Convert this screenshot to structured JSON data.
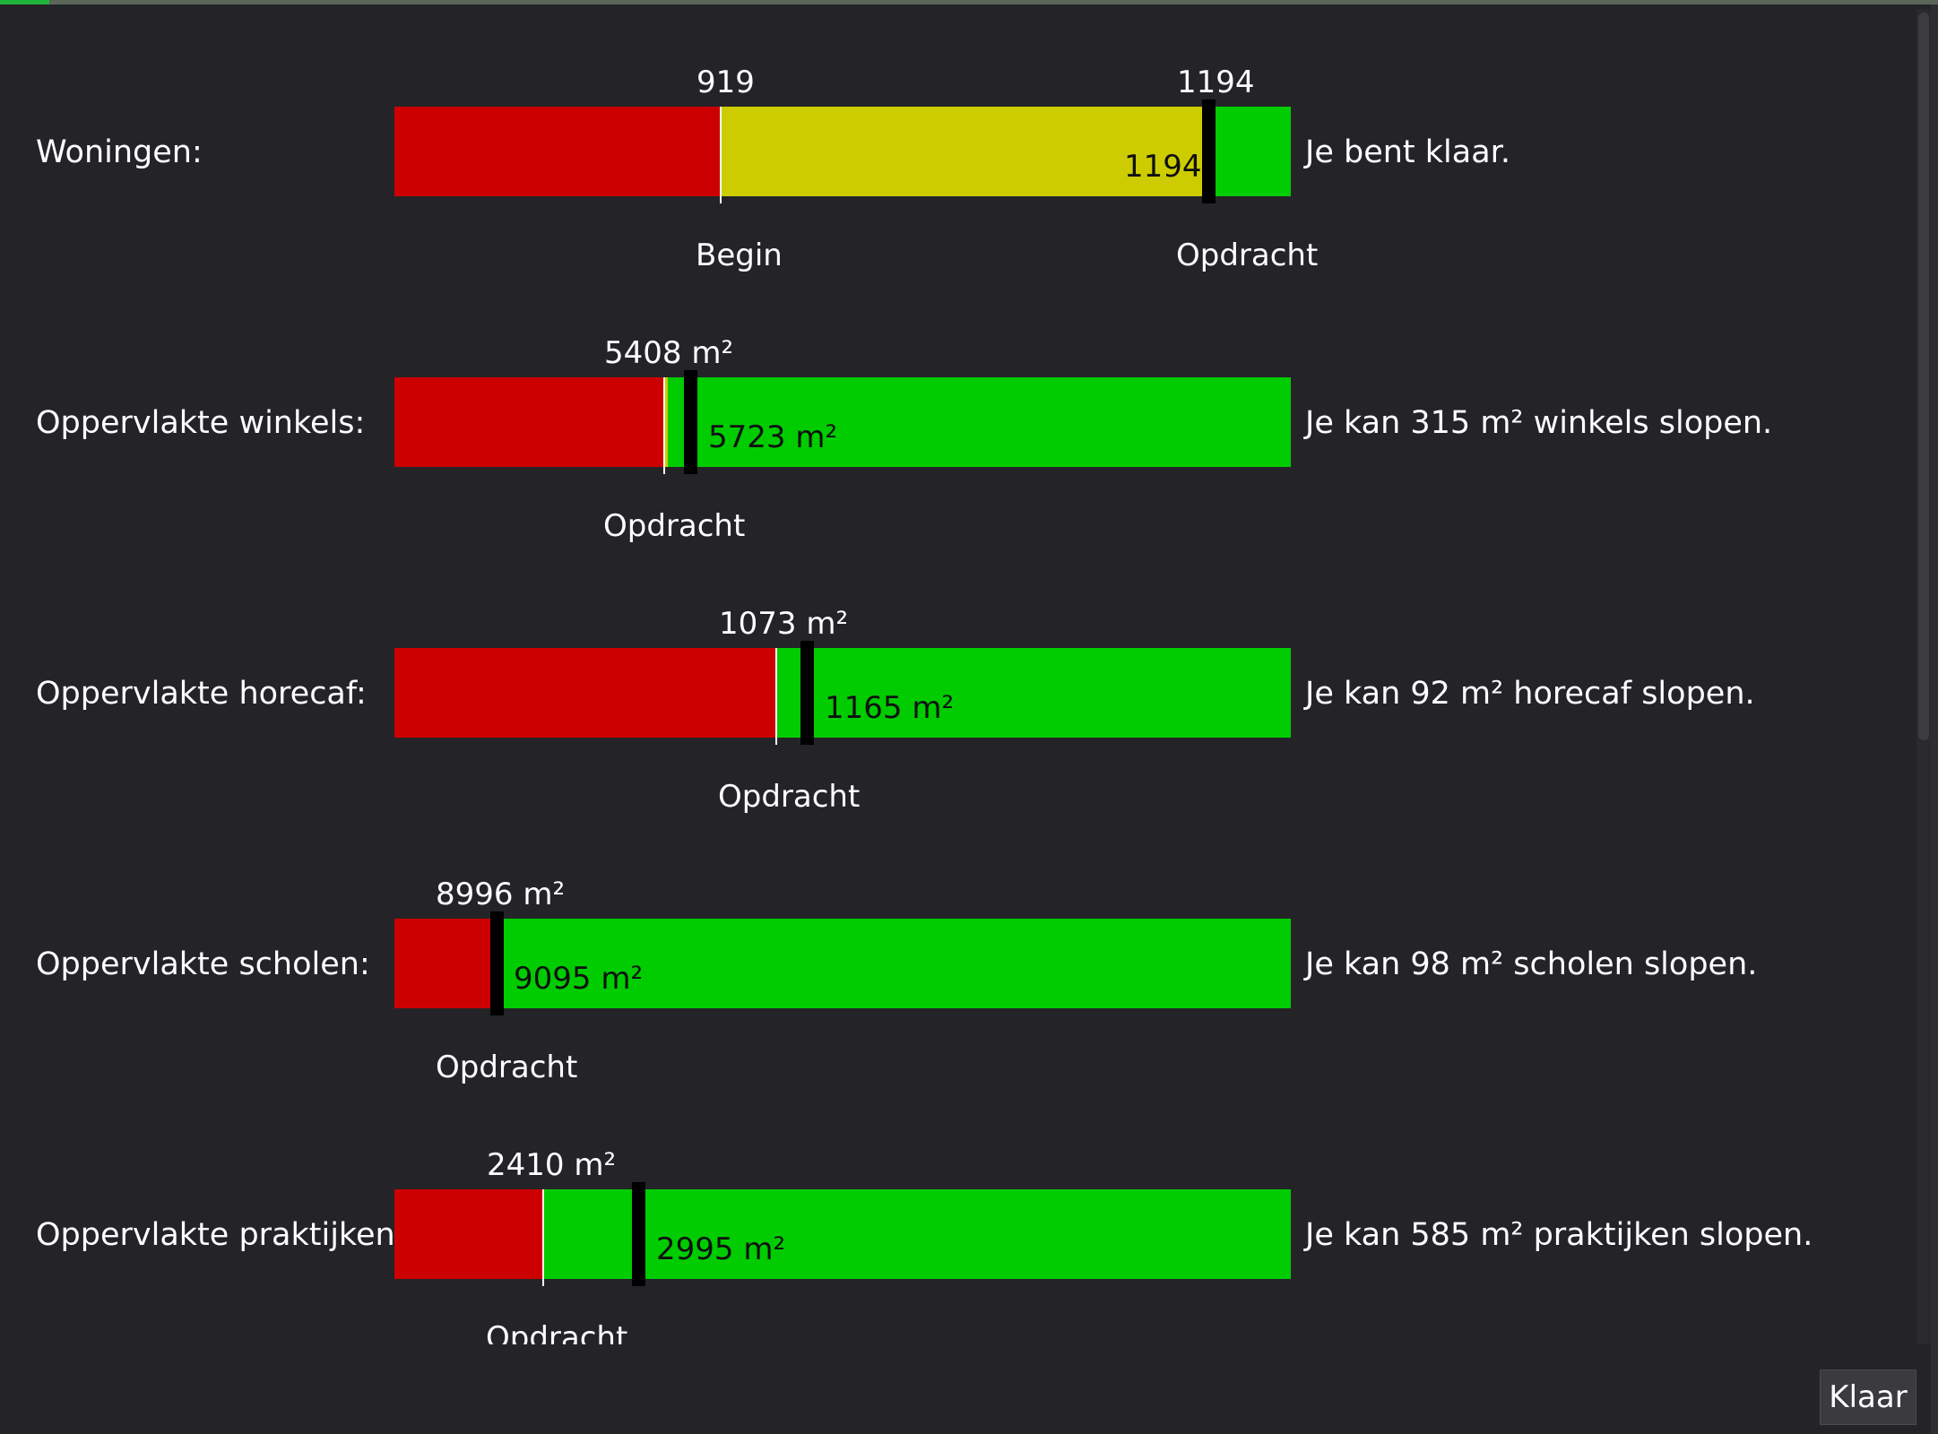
{
  "rows": [
    {
      "label": "Woningen:",
      "start_value": "919",
      "target_value": "1194",
      "current_value": "1194",
      "bottom_label": "Begin",
      "target_label": "Opdracht",
      "status": "Je bent klaar."
    },
    {
      "label": "Oppervlakte winkels:",
      "start_value": "5408 m²",
      "current_value": "5723 m²",
      "bottom_label": "Opdracht",
      "status": "Je kan 315 m² winkels slopen."
    },
    {
      "label": "Oppervlakte horecaf:",
      "start_value": "1073 m²",
      "current_value": "1165 m²",
      "bottom_label": "Opdracht",
      "status": "Je kan 92 m² horecaf slopen."
    },
    {
      "label": "Oppervlakte scholen:",
      "start_value": "8996 m²",
      "current_value": "9095 m²",
      "bottom_label": "Opdracht",
      "status": "Je kan 98 m² scholen slopen."
    },
    {
      "label": "Oppervlakte praktijken:",
      "start_value": "2410 m²",
      "current_value": "2995 m²",
      "bottom_label": "Opdracht",
      "status": "Je kan 585 m² praktijken slopen."
    }
  ],
  "footer": {
    "done_label": "Klaar"
  },
  "colors": {
    "background": "#242428",
    "below_start": "#cc0000",
    "progress": "#cccc00",
    "available": "#00cc00",
    "marker": "#000000"
  }
}
